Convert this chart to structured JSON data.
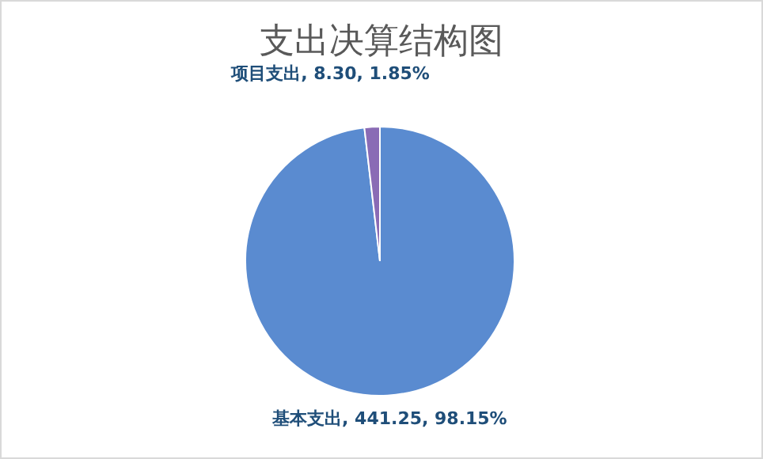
{
  "chart_data": {
    "type": "pie",
    "title": "支出决算结构图",
    "categories": [
      "基本支出",
      "项目支出"
    ],
    "values": [
      441.25,
      8.3
    ],
    "colors": [
      "#5a8bd0",
      "#8a6bb5"
    ],
    "value_labels": [
      ", 441.25, 98.15%",
      ", 8.30, 1.85%"
    ]
  }
}
